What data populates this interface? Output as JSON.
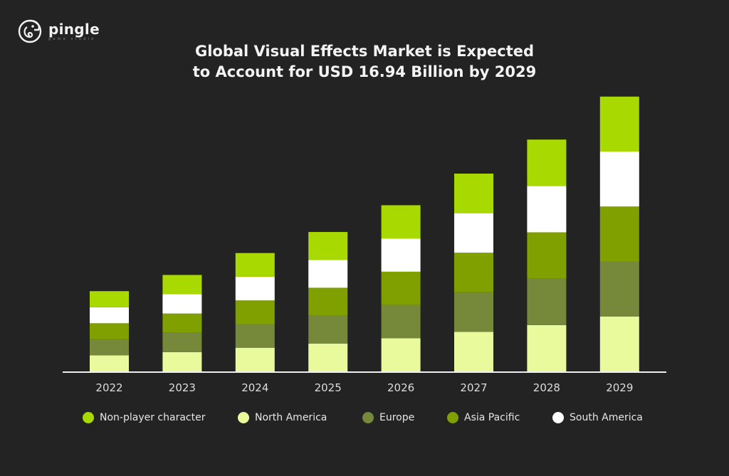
{
  "logo": {
    "name": "pingle",
    "subtitle": "game studio"
  },
  "chart_data": {
    "type": "bar",
    "stacked": true,
    "title": [
      "Global Visual Effects Market is Expected",
      "to Account for USD 16.94 Billion by 2029"
    ],
    "xlabel": "",
    "ylabel": "",
    "ylim": [
      0,
      16.94
    ],
    "y_axis_shown": false,
    "grid": false,
    "legend_position": "bottom",
    "categories": [
      "2022",
      "2023",
      "2024",
      "2025",
      "2026",
      "2027",
      "2028",
      "2029"
    ],
    "series": [
      {
        "name": "North America",
        "color": "#e8fa9c",
        "values": [
          0.99,
          1.19,
          1.46,
          1.72,
          2.05,
          2.44,
          2.86,
          3.39
        ]
      },
      {
        "name": "Europe",
        "color": "#76893a",
        "values": [
          0.99,
          1.19,
          1.46,
          1.72,
          2.05,
          2.44,
          2.86,
          3.39
        ]
      },
      {
        "name": "Asia Pacific",
        "color": "#80a000",
        "values": [
          0.99,
          1.19,
          1.46,
          1.72,
          2.05,
          2.44,
          2.86,
          3.39
        ]
      },
      {
        "name": "South America",
        "color": "#ffffff",
        "values": [
          0.99,
          1.19,
          1.46,
          1.72,
          2.05,
          2.44,
          2.86,
          3.39
        ]
      },
      {
        "name": "Non-player character",
        "color": "#a8d900",
        "values": [
          0.99,
          1.19,
          1.46,
          1.72,
          2.05,
          2.44,
          2.86,
          3.39
        ]
      }
    ],
    "legend_order": [
      "Non-player character",
      "North America",
      "Europe",
      "Asia Pacific",
      "South America"
    ]
  }
}
